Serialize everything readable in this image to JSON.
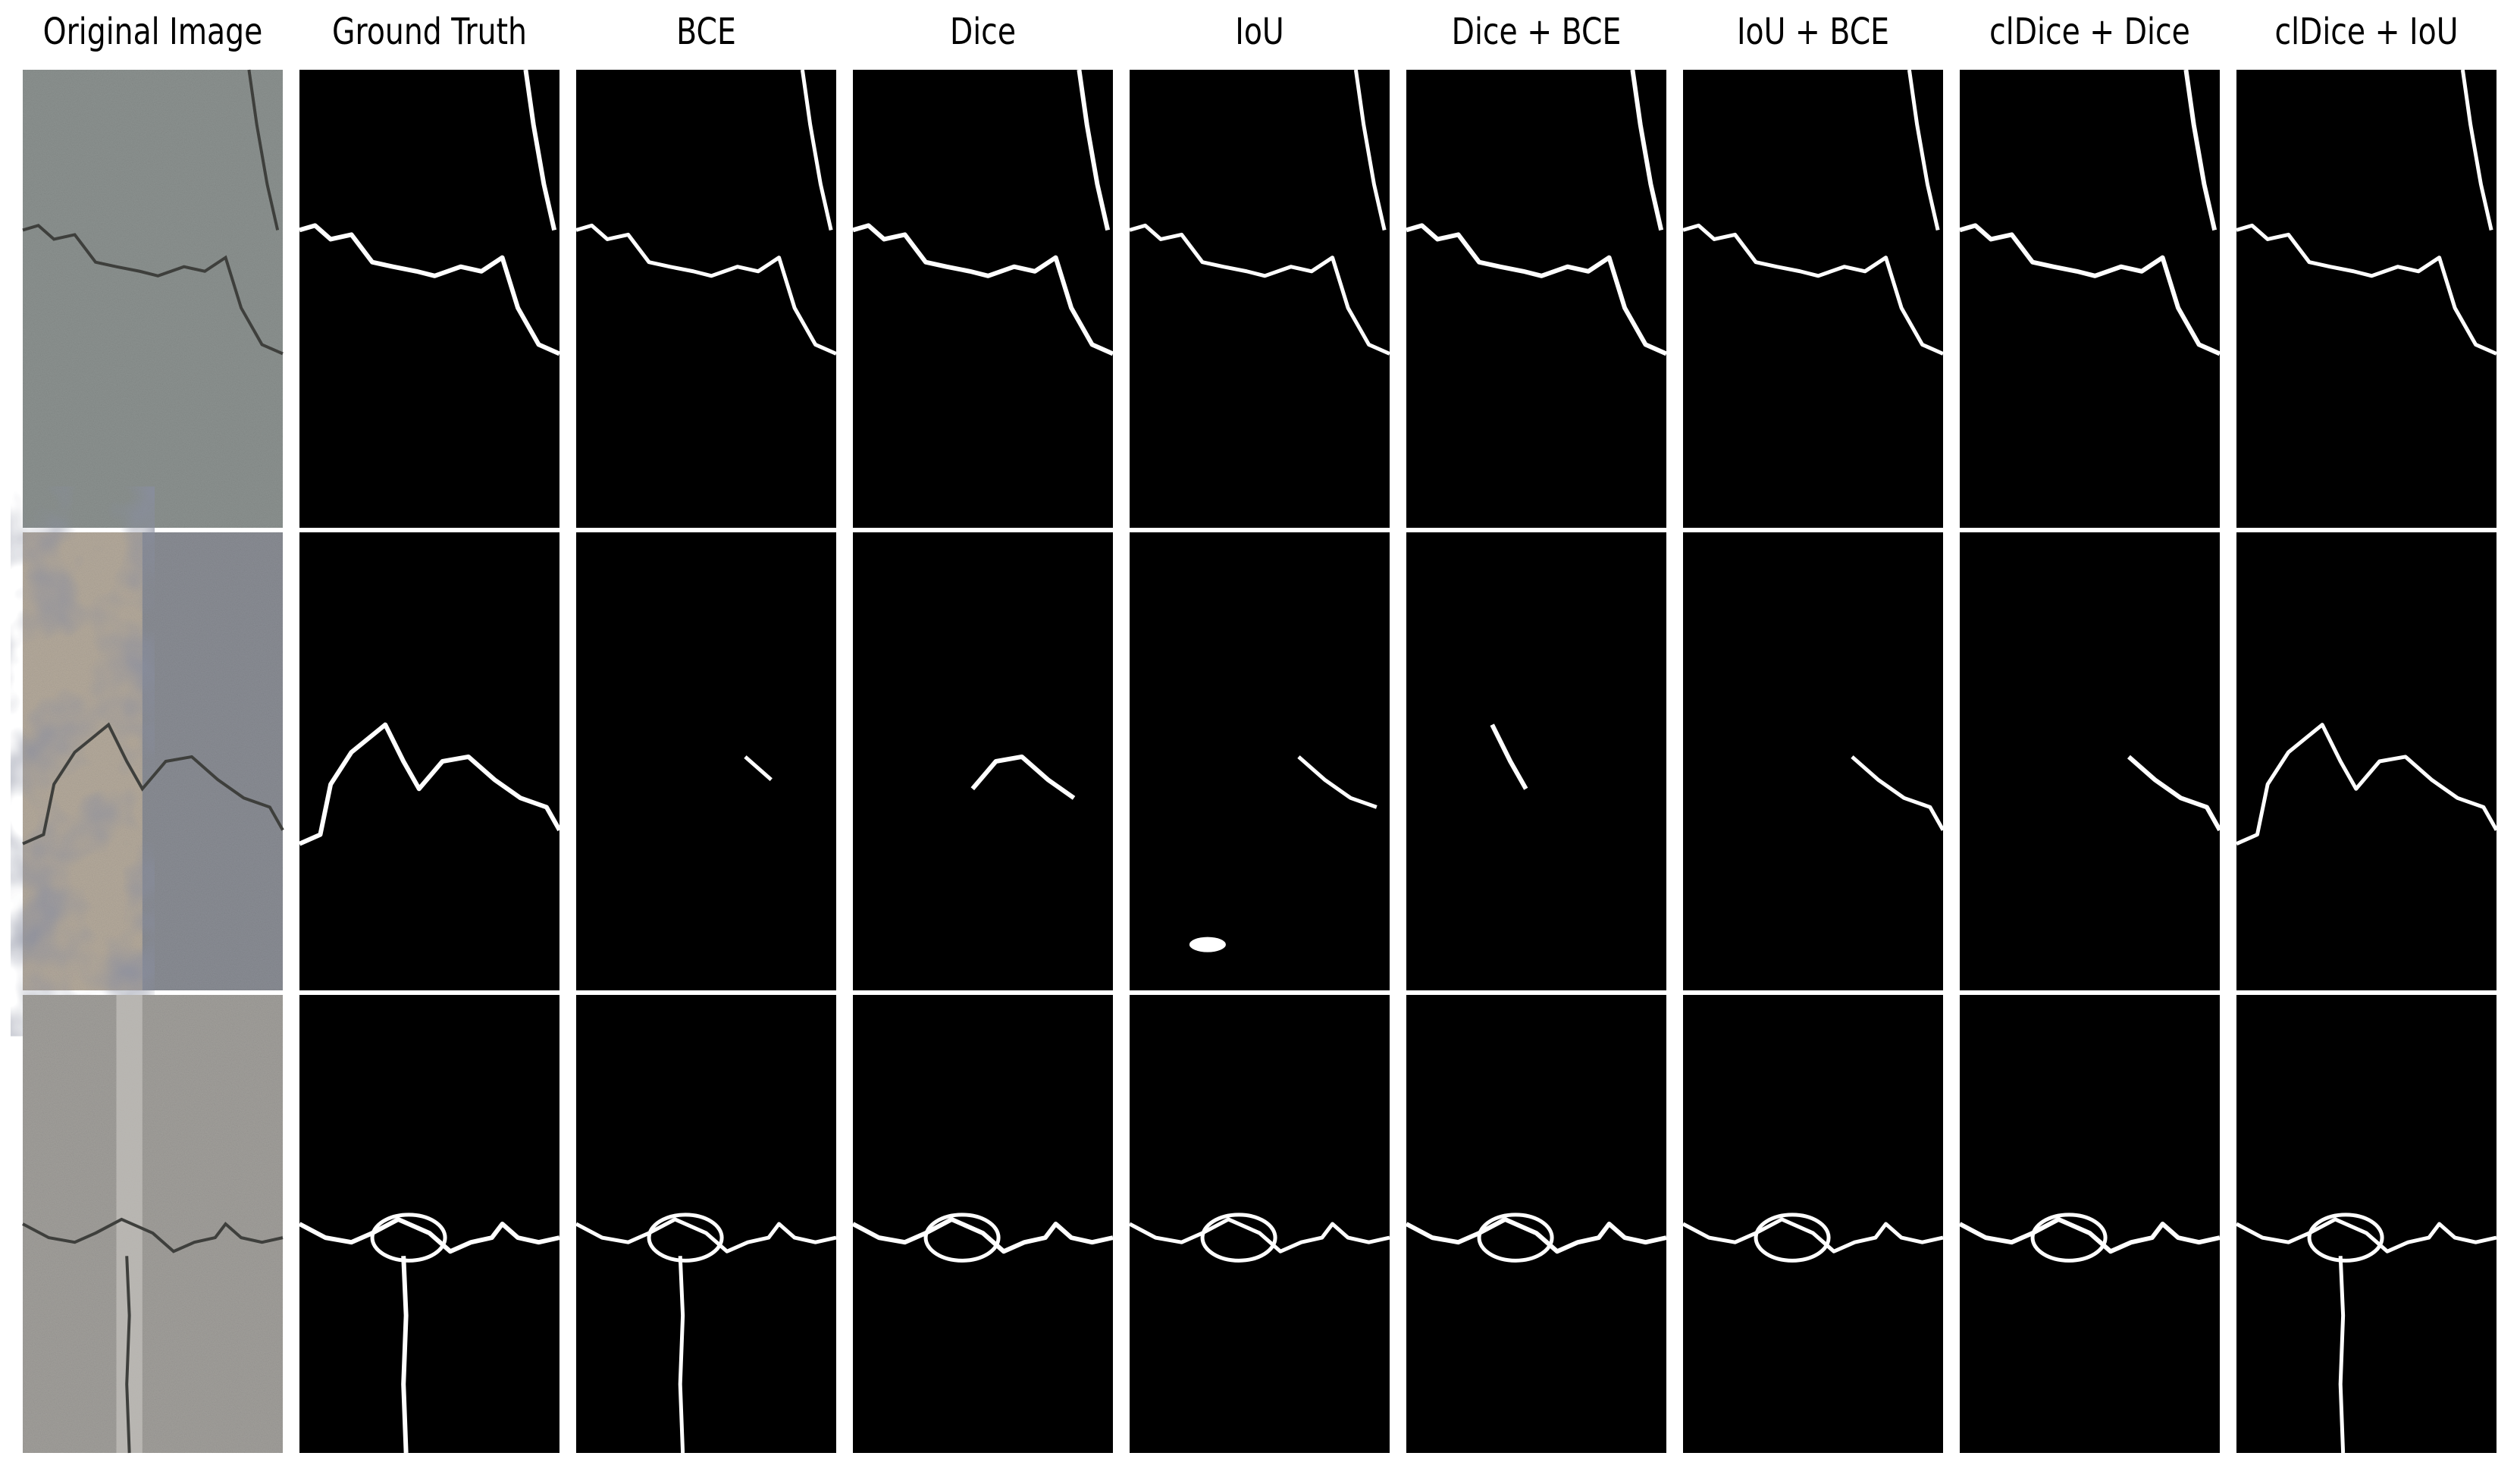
{
  "column_titles": [
    "Original Image",
    "Ground Truth",
    "BCE",
    "Dice",
    "IoU",
    "Dice + BCE",
    "IoU + BCE",
    "clDice + Dice",
    "clDice + IoU"
  ]
}
